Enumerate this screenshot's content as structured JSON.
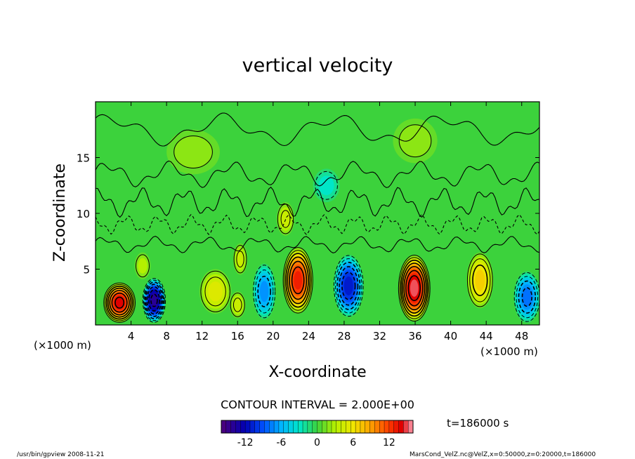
{
  "chart_data": {
    "type": "contour",
    "title": "vertical velocity",
    "xlabel": "X-coordinate",
    "ylabel": "Z-coordinate",
    "x_unit": "(×1000 m)",
    "z_unit": "(×1000 m)",
    "xlim": [
      0,
      50
    ],
    "zlim": [
      0,
      20
    ],
    "x_ticks": [
      4,
      8,
      12,
      16,
      20,
      24,
      28,
      32,
      36,
      40,
      44,
      48
    ],
    "z_ticks": [
      5,
      10,
      15
    ],
    "contour_interval_text": "CONTOUR INTERVAL = 2.000E+00",
    "contour_interval": 2,
    "time_text": "t=186000 s",
    "colorbar": {
      "min": -16,
      "max": 16,
      "ticks": [
        -12,
        -6,
        0,
        6,
        12
      ]
    },
    "cells": [
      {
        "x": 2.7,
        "z": 2.0,
        "w": 14,
        "dx": 1.8,
        "dz": 1.8
      },
      {
        "x": 6.6,
        "z": 2.2,
        "w": -14,
        "dx": 1.3,
        "dz": 2.0
      },
      {
        "x": 5.3,
        "z": 5.3,
        "w": 3,
        "dx": 0.9,
        "dz": 1.2
      },
      {
        "x": 13.5,
        "z": 3.0,
        "w": 5,
        "dx": 1.8,
        "dz": 2.0
      },
      {
        "x": 16.0,
        "z": 1.8,
        "w": 4,
        "dx": 0.9,
        "dz": 1.2
      },
      {
        "x": 16.3,
        "z": 5.9,
        "w": 4,
        "dx": 0.8,
        "dz": 1.4
      },
      {
        "x": 19.0,
        "z": 3.0,
        "w": -7,
        "dx": 1.3,
        "dz": 2.5
      },
      {
        "x": 22.8,
        "z": 4.0,
        "w": 13,
        "dx": 1.7,
        "dz": 3.0
      },
      {
        "x": 28.5,
        "z": 3.5,
        "w": -11,
        "dx": 1.7,
        "dz": 2.8
      },
      {
        "x": 35.9,
        "z": 3.3,
        "w": 15,
        "dx": 1.8,
        "dz": 3.0
      },
      {
        "x": 43.3,
        "z": 4.0,
        "w": 7,
        "dx": 1.5,
        "dz": 2.5
      },
      {
        "x": 48.6,
        "z": 2.5,
        "w": -8,
        "dx": 1.5,
        "dz": 2.3
      },
      {
        "x": 21.4,
        "z": 9.5,
        "w": 4,
        "dx": 1.0,
        "dz": 1.5
      },
      {
        "x": 11.0,
        "z": 15.5,
        "w": 2,
        "dx": 3.0,
        "dz": 2.0
      },
      {
        "x": 36.0,
        "z": 16.5,
        "w": 2,
        "dx": 2.5,
        "dz": 2.0
      },
      {
        "x": 26.0,
        "z": 12.5,
        "w": -3,
        "dx": 1.5,
        "dz": 1.5
      }
    ]
  },
  "footer": {
    "program": "/usr/bin/gpview   2008-11-21",
    "file_info": "MarsCond_VelZ.nc@VelZ,x=0:50000,z=0:20000,t=186000"
  }
}
